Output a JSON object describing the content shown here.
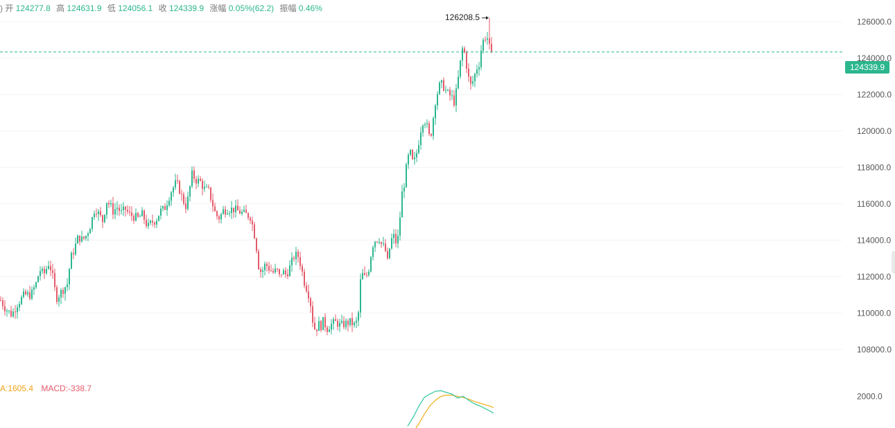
{
  "info": {
    "truncated": ")",
    "open_label": "开",
    "open": "124277.8",
    "high_label": "高",
    "high": "124631.9",
    "low_label": "低",
    "low": "124056.1",
    "close_label": "收",
    "close": "124339.9",
    "change_label": "涨幅",
    "change": "0.05%(62.2)",
    "amplitude_label": "振幅",
    "amplitude": "0.46%"
  },
  "macd_legend": {
    "ma_text": "A:1605.4",
    "macd_text": "MACD:-338.7"
  },
  "colors": {
    "up": "#2bb68e",
    "down": "#e45a6a",
    "dif": "#3cc8a4",
    "dea": "#f0b429"
  },
  "chart_data": {
    "type": "candlestick",
    "ylim": [
      107000,
      127000
    ],
    "y_ticks": [
      "108000.0",
      "110000.0",
      "112000.0",
      "114000.0",
      "116000.0",
      "118000.0",
      "120000.0",
      "122000.0",
      "124000.0",
      "126000.0"
    ],
    "y_tick_values": [
      108000,
      110000,
      112000,
      114000,
      116000,
      118000,
      120000,
      122000,
      124000,
      126000
    ],
    "last_price": 124339.9,
    "last_price_label": "124339.9",
    "max_label": "126208.5",
    "max_value": 126208.5,
    "max_index": 235,
    "close_path": [
      [
        0,
        110700
      ],
      [
        6,
        110300
      ],
      [
        16,
        109900
      ],
      [
        24,
        110500
      ],
      [
        34,
        111000
      ],
      [
        44,
        111000
      ],
      [
        52,
        111700
      ],
      [
        56,
        112400
      ],
      [
        62,
        112100
      ],
      [
        70,
        112800
      ],
      [
        76,
        111800
      ],
      [
        80,
        110800
      ],
      [
        88,
        111200
      ],
      [
        96,
        111600
      ],
      [
        101,
        113000
      ],
      [
        106,
        113500
      ],
      [
        112,
        114200
      ],
      [
        118,
        114000
      ],
      [
        124,
        114300
      ],
      [
        130,
        114900
      ],
      [
        136,
        115800
      ],
      [
        142,
        115400
      ],
      [
        148,
        115000
      ],
      [
        152,
        116200
      ],
      [
        158,
        115900
      ],
      [
        162,
        115600
      ],
      [
        168,
        115800
      ],
      [
        174,
        115500
      ],
      [
        180,
        115700
      ],
      [
        186,
        115400
      ],
      [
        192,
        115300
      ],
      [
        198,
        115200
      ],
      [
        204,
        115400
      ],
      [
        208,
        115100
      ],
      [
        212,
        114700
      ],
      [
        218,
        115000
      ],
      [
        224,
        115100
      ],
      [
        230,
        115600
      ],
      [
        236,
        115700
      ],
      [
        242,
        116300
      ],
      [
        246,
        116700
      ],
      [
        252,
        117100
      ],
      [
        256,
        117000
      ],
      [
        262,
        116300
      ],
      [
        268,
        115800
      ],
      [
        272,
        116700
      ],
      [
        276,
        117600
      ],
      [
        282,
        117300
      ],
      [
        288,
        117200
      ],
      [
        294,
        116800
      ],
      [
        300,
        116700
      ],
      [
        304,
        116200
      ],
      [
        310,
        115400
      ],
      [
        316,
        115200
      ],
      [
        320,
        115600
      ],
      [
        326,
        115700
      ],
      [
        330,
        115700
      ],
      [
        336,
        115700
      ],
      [
        342,
        115600
      ],
      [
        348,
        115500
      ],
      [
        354,
        115400
      ],
      [
        360,
        115300
      ],
      [
        364,
        114700
      ],
      [
        368,
        113900
      ],
      [
        372,
        112600
      ],
      [
        376,
        112200
      ],
      [
        382,
        112700
      ],
      [
        388,
        112400
      ],
      [
        394,
        112200
      ],
      [
        398,
        112400
      ],
      [
        402,
        112000
      ],
      [
        406,
        112300
      ],
      [
        412,
        112100
      ],
      [
        418,
        112600
      ],
      [
        424,
        113200
      ],
      [
        430,
        113100
      ],
      [
        434,
        112400
      ],
      [
        438,
        111700
      ],
      [
        442,
        111300
      ],
      [
        446,
        110800
      ],
      [
        450,
        109600
      ],
      [
        454,
        109000
      ],
      [
        458,
        109400
      ],
      [
        462,
        109300
      ],
      [
        466,
        109600
      ],
      [
        470,
        109100
      ],
      [
        474,
        109300
      ],
      [
        478,
        109400
      ],
      [
        484,
        109500
      ],
      [
        490,
        109300
      ],
      [
        496,
        109400
      ],
      [
        504,
        109500
      ],
      [
        512,
        109300
      ],
      [
        516,
        110000
      ],
      [
        520,
        112300
      ],
      [
        524,
        111900
      ],
      [
        530,
        112200
      ],
      [
        536,
        113700
      ],
      [
        540,
        114000
      ],
      [
        546,
        114100
      ],
      [
        550,
        113700
      ],
      [
        554,
        113600
      ],
      [
        558,
        112800
      ],
      [
        562,
        113800
      ],
      [
        566,
        114300
      ],
      [
        570,
        113900
      ],
      [
        574,
        114200
      ],
      [
        578,
        116400
      ],
      [
        582,
        117100
      ],
      [
        586,
        118200
      ],
      [
        590,
        118900
      ],
      [
        594,
        118300
      ],
      [
        598,
        118400
      ],
      [
        602,
        119200
      ],
      [
        606,
        120100
      ],
      [
        610,
        120700
      ],
      [
        614,
        120400
      ],
      [
        618,
        119700
      ],
      [
        622,
        120000
      ],
      [
        626,
        121500
      ],
      [
        630,
        122100
      ],
      [
        634,
        122600
      ],
      [
        638,
        122500
      ],
      [
        642,
        122200
      ],
      [
        646,
        122000
      ],
      [
        650,
        121900
      ],
      [
        654,
        121600
      ],
      [
        658,
        122300
      ],
      [
        662,
        123500
      ],
      [
        666,
        124500
      ],
      [
        670,
        124200
      ],
      [
        674,
        123000
      ],
      [
        678,
        122500
      ],
      [
        682,
        122800
      ],
      [
        686,
        123400
      ],
      [
        690,
        123700
      ],
      [
        694,
        124700
      ],
      [
        698,
        125200
      ],
      [
        702,
        125100
      ],
      [
        706,
        124400
      ],
      [
        710,
        124340
      ]
    ],
    "macd": {
      "y_tick": "2000.0",
      "y_tick_value": 2000,
      "ylim": [
        -4000,
        3400
      ],
      "dif": [
        [
          588,
          -3300
        ],
        [
          596,
          -1700
        ],
        [
          604,
          200
        ],
        [
          612,
          1800
        ],
        [
          620,
          2400
        ],
        [
          628,
          2900
        ],
        [
          636,
          3000
        ],
        [
          644,
          2700
        ],
        [
          652,
          2400
        ],
        [
          660,
          1700
        ],
        [
          668,
          2000
        ],
        [
          676,
          1300
        ],
        [
          684,
          700
        ],
        [
          692,
          300
        ],
        [
          700,
          -200
        ],
        [
          708,
          -700
        ],
        [
          712,
          -1000
        ]
      ],
      "dea": [
        [
          598,
          -4000
        ],
        [
          604,
          -2900
        ],
        [
          612,
          -1200
        ],
        [
          620,
          300
        ],
        [
          628,
          1300
        ],
        [
          636,
          2000
        ],
        [
          644,
          2200
        ],
        [
          652,
          2200
        ],
        [
          660,
          2000
        ],
        [
          668,
          1800
        ],
        [
          676,
          1500
        ],
        [
          684,
          1100
        ],
        [
          692,
          800
        ],
        [
          700,
          500
        ],
        [
          708,
          200
        ],
        [
          712,
          0
        ]
      ]
    }
  }
}
